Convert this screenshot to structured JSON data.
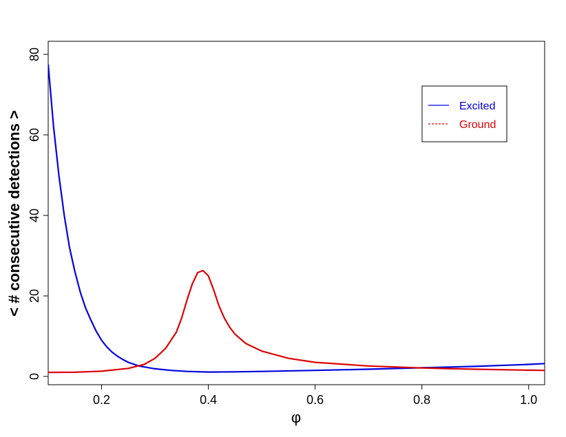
{
  "chart_data": {
    "type": "line",
    "title": "",
    "xlabel": "φ",
    "ylabel": "< # consecutive detections >",
    "xlim": [
      0.1,
      1.03
    ],
    "ylim": [
      0,
      80
    ],
    "xticks": [
      0.2,
      0.4,
      0.6,
      0.8,
      1.0
    ],
    "xtick_labels": [
      "0.2",
      "0.4",
      "0.6",
      "0.8",
      "1.0"
    ],
    "yticks": [
      0,
      20,
      40,
      60,
      80
    ],
    "ytick_labels": [
      "0",
      "20",
      "40",
      "60",
      "80"
    ],
    "grid": false,
    "legend_position": "top-right",
    "series": [
      {
        "name": "Excited",
        "color": "#0000dd",
        "line_style": "solid",
        "x": [
          0.1,
          0.11,
          0.12,
          0.13,
          0.14,
          0.15,
          0.16,
          0.17,
          0.18,
          0.19,
          0.2,
          0.21,
          0.22,
          0.23,
          0.24,
          0.25,
          0.27,
          0.3,
          0.33,
          0.36,
          0.4,
          0.45,
          0.5,
          0.6,
          0.7,
          0.8,
          0.9,
          1.0,
          1.03
        ],
        "y": [
          77.5,
          62,
          50,
          40,
          32,
          26,
          21,
          17,
          14,
          11.2,
          9,
          7.3,
          6,
          5,
          4.2,
          3.5,
          2.6,
          1.9,
          1.5,
          1.25,
          1.1,
          1.15,
          1.25,
          1.5,
          1.8,
          2.15,
          2.5,
          3,
          3.2
        ]
      },
      {
        "name": "Ground",
        "color": "#dd0000",
        "line_style": "dashed",
        "x": [
          0.1,
          0.15,
          0.2,
          0.25,
          0.28,
          0.3,
          0.32,
          0.34,
          0.35,
          0.36,
          0.37,
          0.38,
          0.39,
          0.4,
          0.41,
          0.42,
          0.43,
          0.44,
          0.45,
          0.47,
          0.5,
          0.55,
          0.6,
          0.7,
          0.8,
          0.9,
          1.0,
          1.03
        ],
        "y": [
          1,
          1.05,
          1.3,
          2,
          3,
          4.5,
          7,
          11,
          14.5,
          19,
          23,
          25.8,
          26.3,
          25,
          21.5,
          17.5,
          14.5,
          12.2,
          10.5,
          8.2,
          6.3,
          4.5,
          3.5,
          2.6,
          2.1,
          1.8,
          1.55,
          1.5
        ]
      }
    ]
  }
}
